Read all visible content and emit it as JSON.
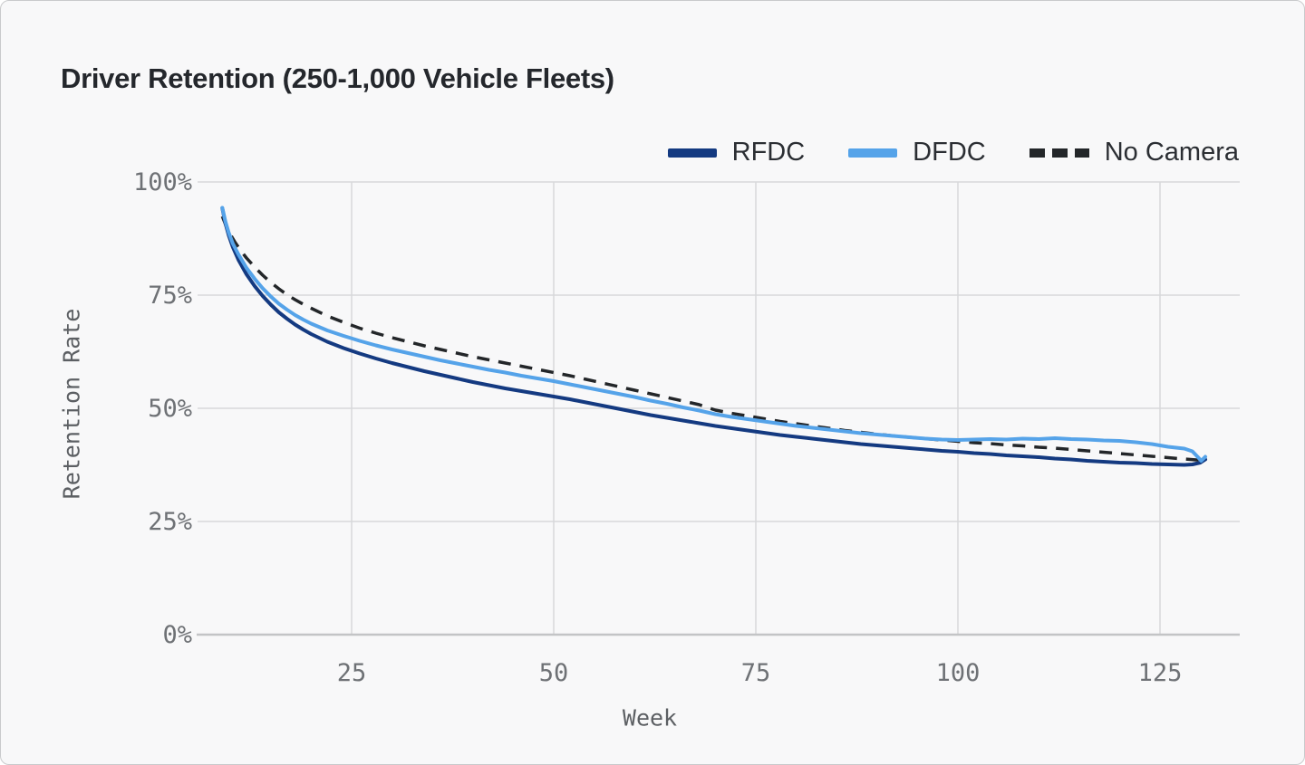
{
  "page": {
    "background_color": "#F8F8F9",
    "border_color": "#C9CACC"
  },
  "chart_data": {
    "type": "line",
    "title": "Driver Retention (250-1,000 Vehicle Fleets)",
    "xlabel": "Week",
    "ylabel": "Retention Rate",
    "xlim": [
      6,
      135
    ],
    "ylim": [
      0,
      100
    ],
    "grid": true,
    "legend_position": "top-right",
    "x_ticks": [
      25,
      50,
      75,
      100,
      125
    ],
    "y_ticks": [
      0,
      25,
      50,
      75,
      100
    ],
    "y_tick_labels": [
      "0%",
      "25%",
      "50%",
      "75%",
      "100%"
    ],
    "gridline_color": "#D7D8DA",
    "axisline_color": "#C3C4C6",
    "series": [
      {
        "name": "No Camera",
        "color": "#232629",
        "style": "dashed",
        "points": [
          [
            9,
            92.4
          ],
          [
            9.5,
            90.2
          ],
          [
            10,
            88.4
          ],
          [
            10.6,
            86.6
          ],
          [
            11.3,
            84.8
          ],
          [
            12,
            83.2
          ],
          [
            13,
            81.2
          ],
          [
            14,
            79.4
          ],
          [
            15,
            77.8
          ],
          [
            16,
            76.4
          ],
          [
            17,
            75.1
          ],
          [
            18,
            74.0
          ],
          [
            19,
            73.0
          ],
          [
            20,
            72.1
          ],
          [
            22,
            70.4
          ],
          [
            24,
            69.0
          ],
          [
            26,
            67.7
          ],
          [
            28,
            66.6
          ],
          [
            30,
            65.6
          ],
          [
            32,
            64.7
          ],
          [
            34,
            63.8
          ],
          [
            36,
            63.0
          ],
          [
            38,
            62.2
          ],
          [
            40,
            61.4
          ],
          [
            42,
            60.7
          ],
          [
            44,
            60.0
          ],
          [
            46,
            59.3
          ],
          [
            48,
            58.6
          ],
          [
            50,
            57.9
          ],
          [
            52,
            57.2
          ],
          [
            54,
            56.4
          ],
          [
            56,
            55.6
          ],
          [
            58,
            54.8
          ],
          [
            60,
            54.0
          ],
          [
            62,
            53.2
          ],
          [
            64,
            52.4
          ],
          [
            66,
            51.6
          ],
          [
            68,
            50.8
          ],
          [
            70,
            49.6
          ],
          [
            72,
            48.9
          ],
          [
            74,
            48.3
          ],
          [
            76,
            47.7
          ],
          [
            78,
            47.1
          ],
          [
            80,
            46.6
          ],
          [
            82,
            46.1
          ],
          [
            84,
            45.6
          ],
          [
            86,
            45.1
          ],
          [
            88,
            44.7
          ],
          [
            90,
            44.3
          ],
          [
            92,
            43.9
          ],
          [
            94,
            43.6
          ],
          [
            96,
            43.3
          ],
          [
            98,
            43.0
          ],
          [
            100,
            42.7
          ],
          [
            102,
            42.4
          ],
          [
            104,
            42.2
          ],
          [
            106,
            41.9
          ],
          [
            108,
            41.7
          ],
          [
            110,
            41.4
          ],
          [
            112,
            41.2
          ],
          [
            114,
            40.9
          ],
          [
            116,
            40.6
          ],
          [
            118,
            40.3
          ],
          [
            120,
            40.0
          ],
          [
            122,
            39.7
          ],
          [
            124,
            39.4
          ],
          [
            126,
            39.1
          ],
          [
            128,
            38.8
          ],
          [
            129.5,
            38.6
          ],
          [
            130.4,
            38.5
          ]
        ]
      },
      {
        "name": "RFDC",
        "color": "#143A81",
        "style": "solid",
        "points": [
          [
            9,
            94.2
          ],
          [
            9.4,
            90.8
          ],
          [
            9.8,
            88.2
          ],
          [
            10.3,
            85.6
          ],
          [
            11,
            82.8
          ],
          [
            12,
            79.6
          ],
          [
            13,
            77.0
          ],
          [
            14,
            74.8
          ],
          [
            15,
            72.9
          ],
          [
            16,
            71.2
          ],
          [
            17,
            69.8
          ],
          [
            18,
            68.5
          ],
          [
            19,
            67.4
          ],
          [
            20,
            66.4
          ],
          [
            22,
            64.7
          ],
          [
            24,
            63.3
          ],
          [
            26,
            62.1
          ],
          [
            28,
            61.0
          ],
          [
            30,
            60.0
          ],
          [
            32,
            59.1
          ],
          [
            34,
            58.2
          ],
          [
            36,
            57.4
          ],
          [
            38,
            56.6
          ],
          [
            40,
            55.8
          ],
          [
            42,
            55.1
          ],
          [
            44,
            54.4
          ],
          [
            46,
            53.8
          ],
          [
            48,
            53.2
          ],
          [
            50,
            52.6
          ],
          [
            52,
            52.0
          ],
          [
            54,
            51.3
          ],
          [
            56,
            50.6
          ],
          [
            58,
            49.9
          ],
          [
            60,
            49.2
          ],
          [
            62,
            48.5
          ],
          [
            64,
            47.9
          ],
          [
            66,
            47.3
          ],
          [
            68,
            46.7
          ],
          [
            70,
            46.1
          ],
          [
            72,
            45.6
          ],
          [
            74,
            45.1
          ],
          [
            76,
            44.6
          ],
          [
            78,
            44.1
          ],
          [
            80,
            43.7
          ],
          [
            82,
            43.3
          ],
          [
            84,
            42.9
          ],
          [
            86,
            42.5
          ],
          [
            88,
            42.1
          ],
          [
            90,
            41.8
          ],
          [
            92,
            41.5
          ],
          [
            94,
            41.2
          ],
          [
            96,
            40.9
          ],
          [
            98,
            40.6
          ],
          [
            100,
            40.4
          ],
          [
            102,
            40.1
          ],
          [
            104,
            39.9
          ],
          [
            106,
            39.6
          ],
          [
            108,
            39.4
          ],
          [
            110,
            39.2
          ],
          [
            112,
            38.9
          ],
          [
            114,
            38.7
          ],
          [
            116,
            38.4
          ],
          [
            118,
            38.2
          ],
          [
            120,
            38.0
          ],
          [
            122,
            37.9
          ],
          [
            124,
            37.7
          ],
          [
            126,
            37.6
          ],
          [
            128,
            37.5
          ],
          [
            129,
            37.6
          ],
          [
            130,
            38.0
          ],
          [
            130.6,
            38.7
          ]
        ]
      },
      {
        "name": "DFDC",
        "color": "#55A3E9",
        "style": "solid",
        "points": [
          [
            9,
            94.3
          ],
          [
            9.4,
            91.2
          ],
          [
            9.8,
            88.8
          ],
          [
            10.3,
            86.4
          ],
          [
            11,
            84.0
          ],
          [
            12,
            81.0
          ],
          [
            13,
            78.6
          ],
          [
            14,
            76.5
          ],
          [
            15,
            74.7
          ],
          [
            16,
            73.1
          ],
          [
            17,
            71.8
          ],
          [
            18,
            70.6
          ],
          [
            19,
            69.6
          ],
          [
            20,
            68.7
          ],
          [
            22,
            67.2
          ],
          [
            24,
            66.0
          ],
          [
            26,
            64.9
          ],
          [
            28,
            63.9
          ],
          [
            30,
            63.0
          ],
          [
            32,
            62.2
          ],
          [
            34,
            61.4
          ],
          [
            36,
            60.6
          ],
          [
            38,
            59.9
          ],
          [
            40,
            59.2
          ],
          [
            42,
            58.5
          ],
          [
            44,
            57.9
          ],
          [
            46,
            57.2
          ],
          [
            48,
            56.6
          ],
          [
            50,
            56.0
          ],
          [
            52,
            55.3
          ],
          [
            54,
            54.6
          ],
          [
            56,
            53.9
          ],
          [
            58,
            53.2
          ],
          [
            60,
            52.5
          ],
          [
            62,
            51.7
          ],
          [
            64,
            51.0
          ],
          [
            66,
            50.2
          ],
          [
            68,
            49.5
          ],
          [
            70,
            48.7
          ],
          [
            72,
            48.1
          ],
          [
            74,
            47.6
          ],
          [
            76,
            47.1
          ],
          [
            78,
            46.6
          ],
          [
            80,
            46.1
          ],
          [
            82,
            45.7
          ],
          [
            84,
            45.3
          ],
          [
            86,
            44.9
          ],
          [
            88,
            44.5
          ],
          [
            90,
            44.2
          ],
          [
            92,
            43.9
          ],
          [
            94,
            43.6
          ],
          [
            96,
            43.3
          ],
          [
            98,
            43.1
          ],
          [
            100,
            43.0
          ],
          [
            102,
            43.1
          ],
          [
            104,
            43.2
          ],
          [
            106,
            43.1
          ],
          [
            108,
            43.3
          ],
          [
            110,
            43.2
          ],
          [
            112,
            43.4
          ],
          [
            114,
            43.2
          ],
          [
            116,
            43.1
          ],
          [
            118,
            42.9
          ],
          [
            120,
            42.8
          ],
          [
            122,
            42.5
          ],
          [
            124,
            42.1
          ],
          [
            125,
            41.8
          ],
          [
            126,
            41.5
          ],
          [
            127,
            41.3
          ],
          [
            128,
            41.1
          ],
          [
            129,
            40.5
          ],
          [
            129.7,
            39.2
          ],
          [
            130.1,
            38.4
          ],
          [
            130.6,
            39.3
          ]
        ]
      }
    ]
  },
  "legend": {
    "items": [
      {
        "label": "RFDC"
      },
      {
        "label": "DFDC"
      },
      {
        "label": "No Camera"
      }
    ]
  }
}
